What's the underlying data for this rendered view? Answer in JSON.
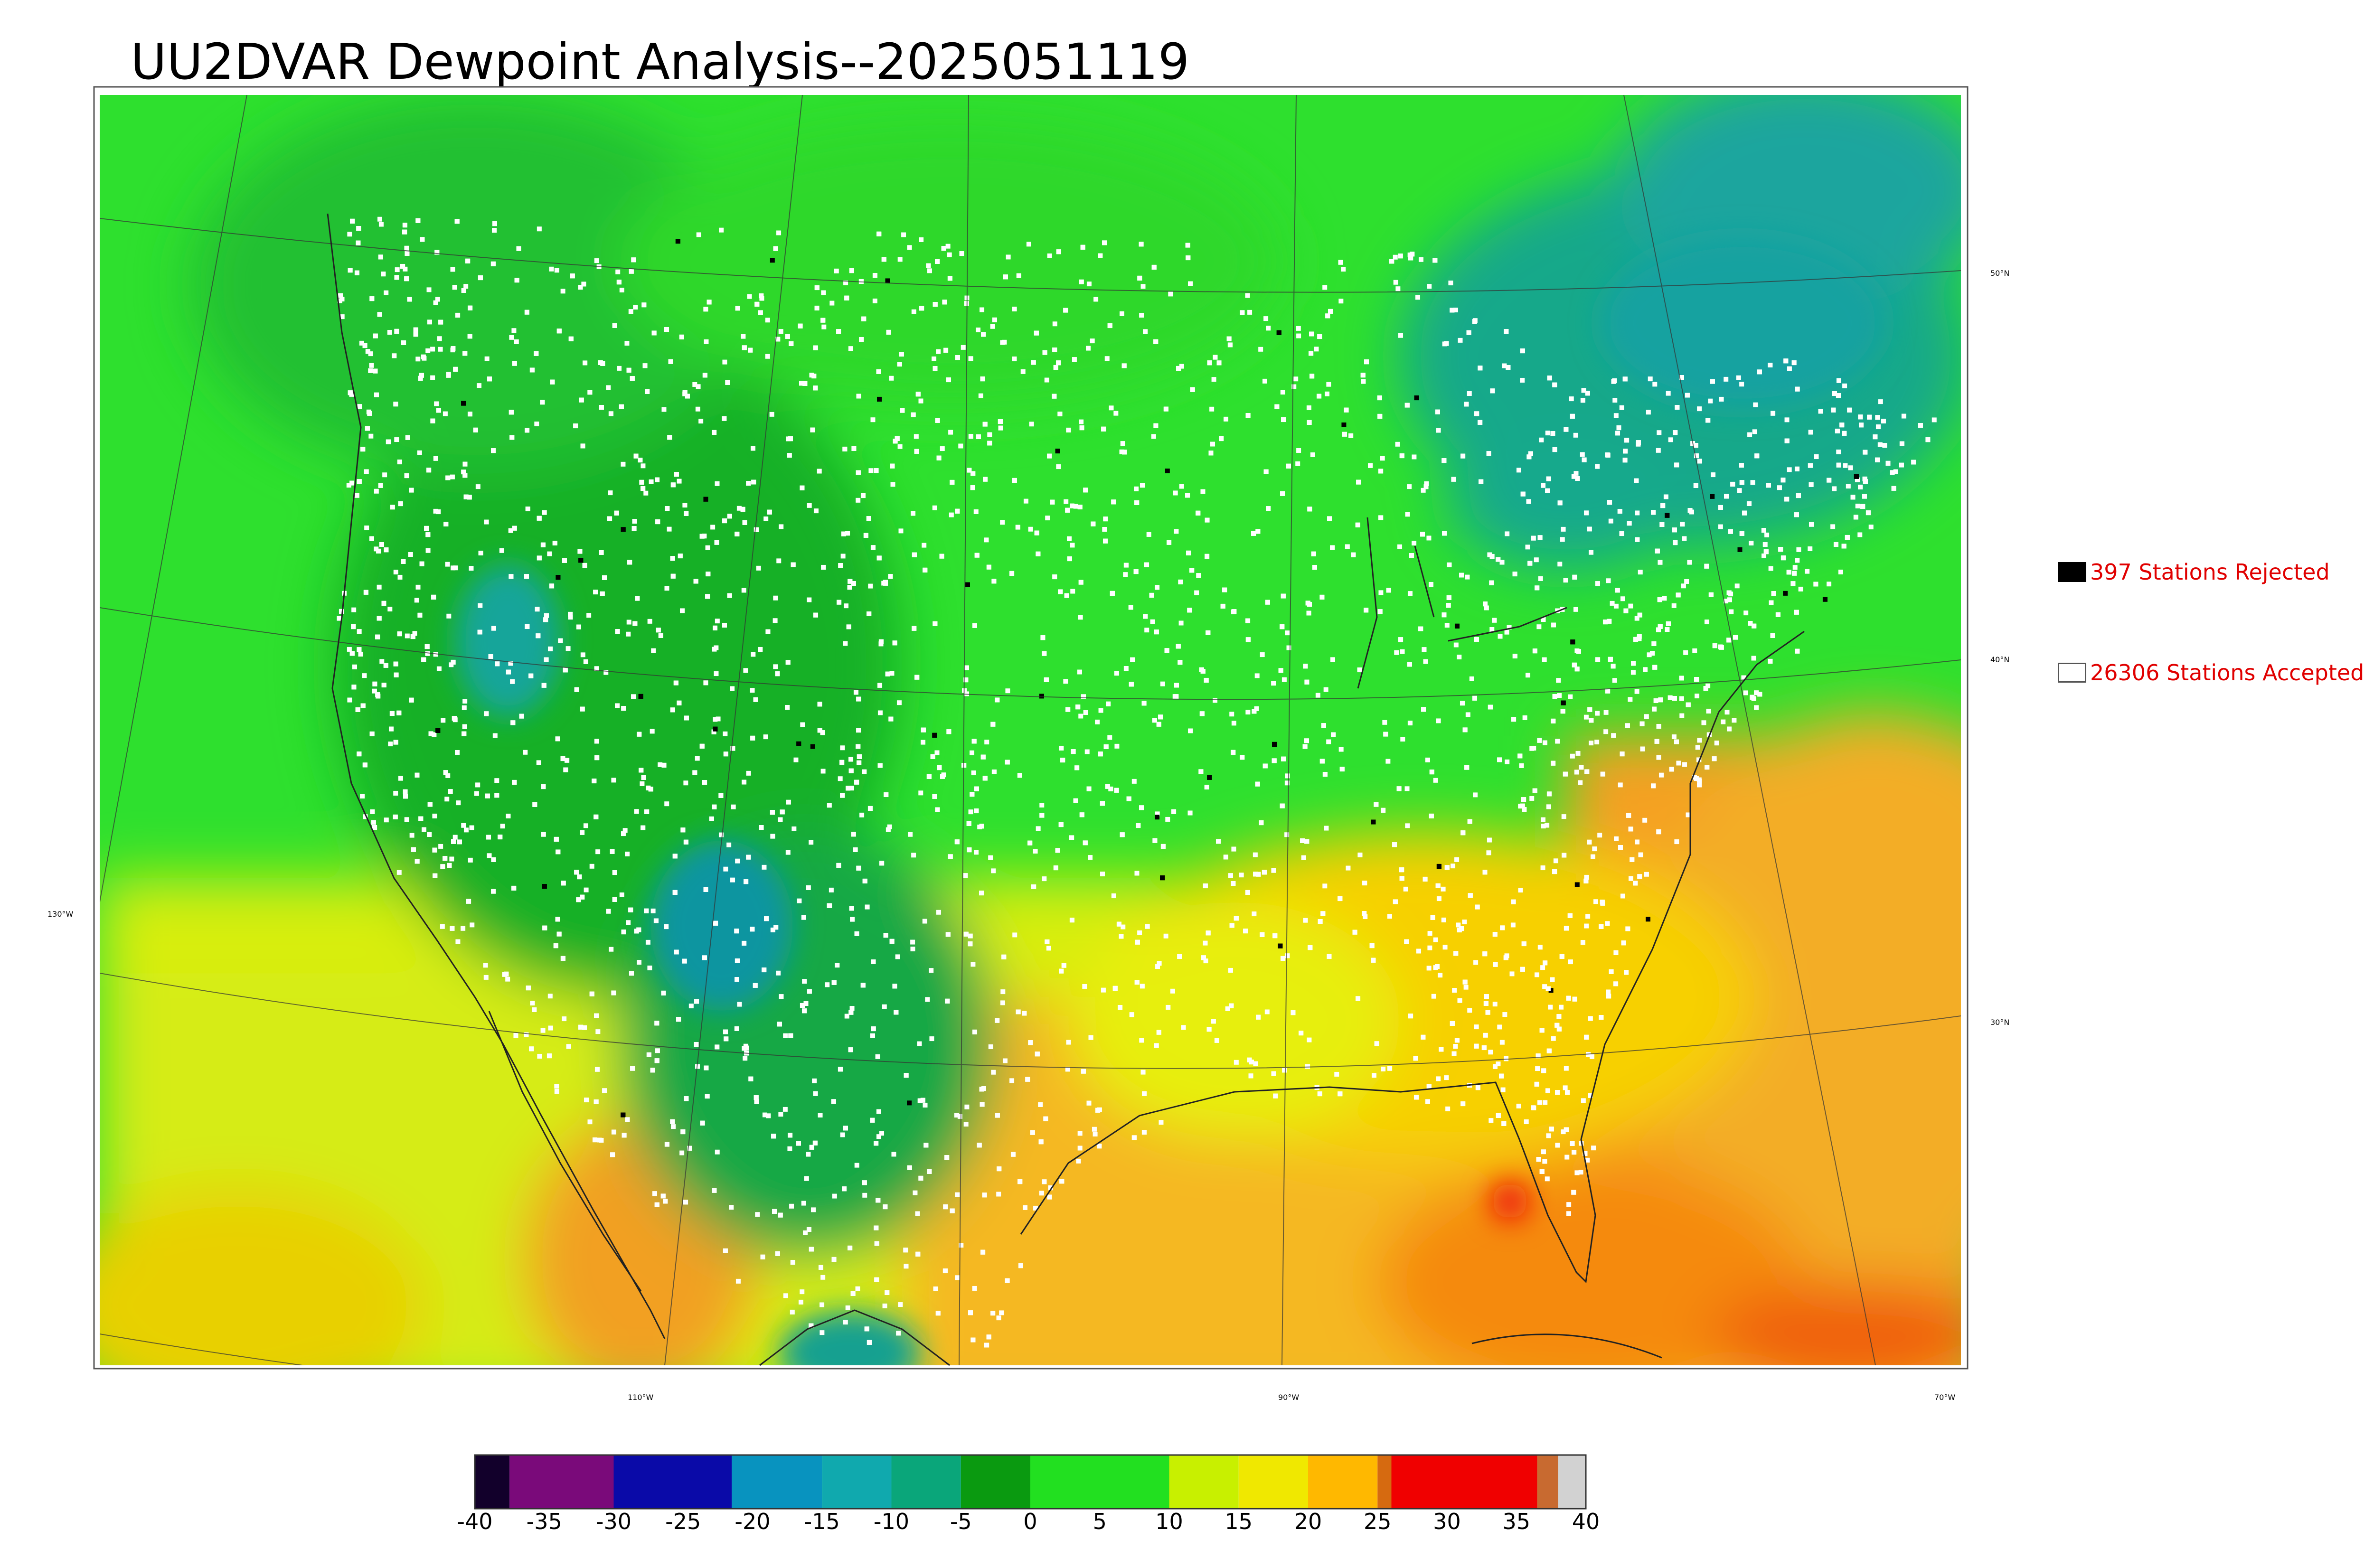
{
  "title": "UU2DVAR Dewpoint Analysis--2025051119",
  "map": {
    "lat_labels": [
      {
        "text": "50°N"
      },
      {
        "text": "40°N"
      },
      {
        "text": "30°N"
      }
    ],
    "lon_labels": [
      {
        "text": "130°W"
      },
      {
        "text": "110°W"
      },
      {
        "text": "90°W"
      },
      {
        "text": "70°W"
      }
    ]
  },
  "legend": {
    "rejected": {
      "count": 397,
      "label": "397 Stations Rejected",
      "color": "#000000"
    },
    "accepted": {
      "count": 26306,
      "label": "26306 Stations Accepted",
      "color": "#ffffff"
    }
  },
  "colorbar": {
    "min": -40,
    "max": 40,
    "ticks": [
      "-40",
      "-35",
      "-30",
      "-25",
      "-20",
      "-15",
      "-10",
      "-5",
      "0",
      "5",
      "10",
      "15",
      "20",
      "25",
      "30",
      "35",
      "40"
    ],
    "segments": [
      {
        "from": -40,
        "to": -37.5,
        "color": "#12002b"
      },
      {
        "from": -37.5,
        "to": -30,
        "color": "#7a0a7a"
      },
      {
        "from": -30,
        "to": -21.5,
        "color": "#0a0aa8"
      },
      {
        "from": -21.5,
        "to": -15,
        "color": "#0893bf"
      },
      {
        "from": -15,
        "to": -10,
        "color": "#10a9ae"
      },
      {
        "from": -10,
        "to": -5,
        "color": "#0aa67a"
      },
      {
        "from": -5,
        "to": 0,
        "color": "#0a9a10"
      },
      {
        "from": 0,
        "to": 10,
        "color": "#22e020"
      },
      {
        "from": 10,
        "to": 15,
        "color": "#c8f000"
      },
      {
        "from": 15,
        "to": 20,
        "color": "#f0e800"
      },
      {
        "from": 20,
        "to": 25,
        "color": "#ffb800"
      },
      {
        "from": 25,
        "to": 26,
        "color": "#d66a10"
      },
      {
        "from": 26,
        "to": 36.5,
        "color": "#f00000"
      },
      {
        "from": 36.5,
        "to": 38,
        "color": "#c86a30"
      },
      {
        "from": 38,
        "to": 40,
        "color": "#d2d2d2"
      }
    ]
  }
}
